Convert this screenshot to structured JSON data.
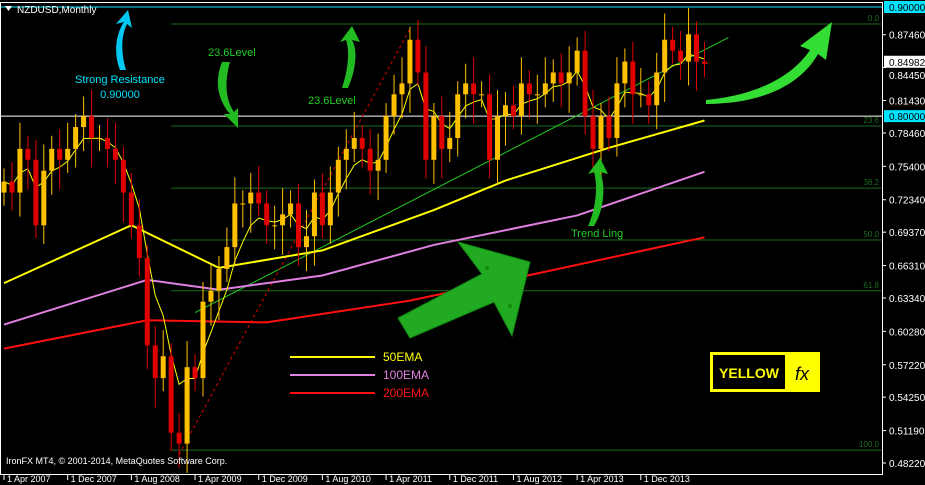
{
  "window": {
    "title": "NZDUSD,Monthly",
    "footer": "IronFX MT4, © 2001-2014, MetaQuotes Software Corp."
  },
  "annotations": {
    "strong_resistance": "Strong Resistance",
    "strong_resistance_value": "0.90000",
    "level_1": "23.6Level",
    "level_2": "23.6Level",
    "trend": "Trend Ling"
  },
  "logo": {
    "text": "YELLOW",
    "mark": "fx"
  },
  "colors": {
    "background": "#000000",
    "bull": "#ffc000",
    "bear": "#e00000",
    "ema50": "#ffff00",
    "ema100": "#e080e0",
    "ema200": "#ff1010",
    "fib": "#1e6e1e",
    "trend": "#22cc22",
    "resistance": "#00e5ff",
    "arrow": "#22bb22"
  },
  "chart_data": {
    "type": "candlestick",
    "symbol": "NZDUSD",
    "timeframe": "Monthly",
    "ylim": [
      0.4822,
      0.9
    ],
    "y_ticks": [
      "0.87460",
      "0.84450",
      "0.81430",
      "0.78460",
      "0.75400",
      "0.72340",
      "0.69370",
      "0.66310",
      "0.63340",
      "0.60280",
      "0.57220",
      "0.54250",
      "0.51190",
      "0.48220"
    ],
    "x_ticks": [
      "1 Apr 2007",
      "1 Dec 2007",
      "1 Aug 2008",
      "1 Apr 2009",
      "1 Dec 2009",
      "1 Aug 2010",
      "1 Apr 2011",
      "1 Dec 2011",
      "1 Aug 2012",
      "1 Apr 2013",
      "1 Dec 2013"
    ],
    "start_month": "2007-04",
    "close": [
      0.74,
      0.73,
      0.77,
      0.76,
      0.7,
      0.75,
      0.77,
      0.76,
      0.77,
      0.79,
      0.8,
      0.78,
      0.78,
      0.77,
      0.76,
      0.73,
      0.7,
      0.67,
      0.59,
      0.56,
      0.58,
      0.51,
      0.5,
      0.57,
      0.56,
      0.63,
      0.64,
      0.66,
      0.68,
      0.72,
      0.72,
      0.73,
      0.72,
      0.7,
      0.7,
      0.71,
      0.72,
      0.68,
      0.69,
      0.73,
      0.7,
      0.73,
      0.76,
      0.77,
      0.78,
      0.77,
      0.75,
      0.76,
      0.8,
      0.82,
      0.83,
      0.87,
      0.84,
      0.76,
      0.8,
      0.77,
      0.78,
      0.82,
      0.83,
      0.82,
      0.82,
      0.76,
      0.8,
      0.81,
      0.8,
      0.83,
      0.82,
      0.82,
      0.83,
      0.84,
      0.83,
      0.84,
      0.86,
      0.8,
      0.77,
      0.8,
      0.78,
      0.83,
      0.85,
      0.82,
      0.82,
      0.81,
      0.84,
      0.87,
      0.86,
      0.85,
      0.875,
      0.85,
      0.848
    ],
    "price_labels": [
      {
        "value": 0.9,
        "text": "0.90000",
        "style": "cyan"
      },
      {
        "value": 0.84982,
        "text": "0.84982",
        "style": "white"
      },
      {
        "value": 0.8,
        "text": "0.80000",
        "style": "cyan"
      }
    ],
    "horizontal_lines": [
      {
        "value": 0.9,
        "color": "#00e5ff"
      },
      {
        "value": 0.8,
        "color": "#ffffff"
      }
    ],
    "fibonacci": {
      "from": "2009-01",
      "levels": [
        {
          "label": "0.0",
          "value": 0.8844
        },
        {
          "label": "23.6",
          "value": 0.791
        },
        {
          "label": "38.2",
          "value": 0.734
        },
        {
          "label": "50.0",
          "value": 0.6865
        },
        {
          "label": "61.8",
          "value": 0.64
        },
        {
          "label": "100.0",
          "value": 0.494
        }
      ]
    },
    "trend_line": [
      [
        "2009-04",
        0.62
      ],
      [
        "2014-11",
        0.872
      ]
    ],
    "fib_dashed_line": [
      [
        "2009-02",
        0.49
      ],
      [
        "2011-07",
        0.88
      ]
    ],
    "series": [
      {
        "name": "50EMA",
        "color": "#ffff00",
        "points": [
          [
            "2007-04",
            0.647
          ],
          [
            "2008-08",
            0.7
          ],
          [
            "2009-07",
            0.661
          ],
          [
            "2010-08",
            0.677
          ],
          [
            "2011-10",
            0.714
          ],
          [
            "2012-07",
            0.741
          ],
          [
            "2013-08",
            0.771
          ],
          [
            "2014-08",
            0.796
          ]
        ]
      },
      {
        "name": "100EMA",
        "color": "#e080e0",
        "points": [
          [
            "2007-04",
            0.609
          ],
          [
            "2008-10",
            0.65
          ],
          [
            "2009-07",
            0.641
          ],
          [
            "2010-08",
            0.654
          ],
          [
            "2011-10",
            0.682
          ],
          [
            "2013-04",
            0.709
          ],
          [
            "2014-08",
            0.749
          ]
        ]
      },
      {
        "name": "200EMA",
        "color": "#ff1010",
        "points": [
          [
            "2007-04",
            0.587
          ],
          [
            "2008-10",
            0.613
          ],
          [
            "2010-01",
            0.611
          ],
          [
            "2011-07",
            0.631
          ],
          [
            "2013-01",
            0.659
          ],
          [
            "2014-08",
            0.689
          ]
        ]
      }
    ]
  }
}
